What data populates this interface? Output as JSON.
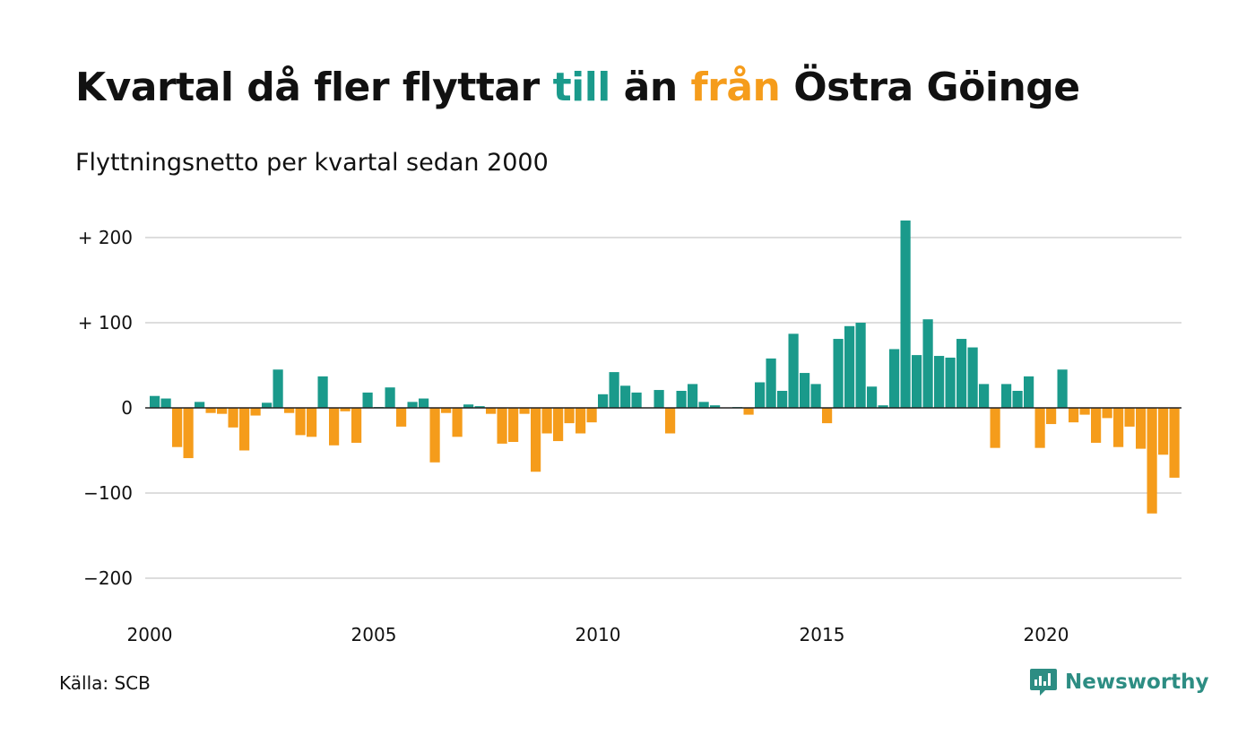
{
  "title": {
    "part1": "Kvartal då fler flyttar ",
    "word_positive": "till",
    "part2": " än ",
    "word_negative": "från",
    "part3": " Östra Göinge"
  },
  "subtitle": "Flyttningsnetto per kvartal sedan 2000",
  "source": "Källa: SCB",
  "brand": {
    "name": "Newsworthy",
    "icon": "newsworthy-logo-icon"
  },
  "colors": {
    "positive": "#1a9a8b",
    "negative": "#f59c1b",
    "grid": "#dddddd",
    "text": "#111111",
    "brand": "#2d8d83"
  },
  "chart_data": {
    "type": "bar",
    "title": "Kvartal då fler flyttar till än från Östra Göinge",
    "subtitle": "Flyttningsnetto per kvartal sedan 2000",
    "ylim": [
      -230,
      230
    ],
    "y_ticks": [
      {
        "value": 200,
        "label": "+ 200"
      },
      {
        "value": 100,
        "label": "+ 100"
      },
      {
        "value": 0,
        "label": "0"
      },
      {
        "value": -100,
        "label": "−100"
      },
      {
        "value": -200,
        "label": "−200"
      }
    ],
    "x_ticks": [
      {
        "value": 2000,
        "label": "2000"
      },
      {
        "value": 2005,
        "label": "2005"
      },
      {
        "value": 2010,
        "label": "2010"
      },
      {
        "value": 2015,
        "label": "2015"
      },
      {
        "value": 2020,
        "label": "2020"
      }
    ],
    "start_year": 2000,
    "grid": true,
    "values": [
      14,
      11,
      -46,
      -59,
      7,
      -6,
      -7,
      -23,
      -50,
      -9,
      6,
      45,
      -6,
      -32,
      -34,
      37,
      -44,
      -4,
      -41,
      18,
      1,
      24,
      -22,
      7,
      11,
      -64,
      -6,
      -34,
      4,
      2,
      -7,
      -42,
      -40,
      -7,
      -75,
      -30,
      -39,
      -18,
      -30,
      -17,
      16,
      42,
      26,
      18,
      0,
      21,
      -30,
      20,
      28,
      7,
      3,
      0,
      1,
      -8,
      30,
      58,
      20,
      87,
      41,
      28,
      -18,
      81,
      96,
      100,
      25,
      3,
      69,
      220,
      62,
      104,
      61,
      59,
      81,
      71,
      28,
      -47,
      28,
      20,
      37,
      -47,
      -19,
      45,
      -17,
      -8,
      -41,
      -12,
      -46,
      -22,
      -48,
      -124,
      -55,
      -82
    ]
  }
}
